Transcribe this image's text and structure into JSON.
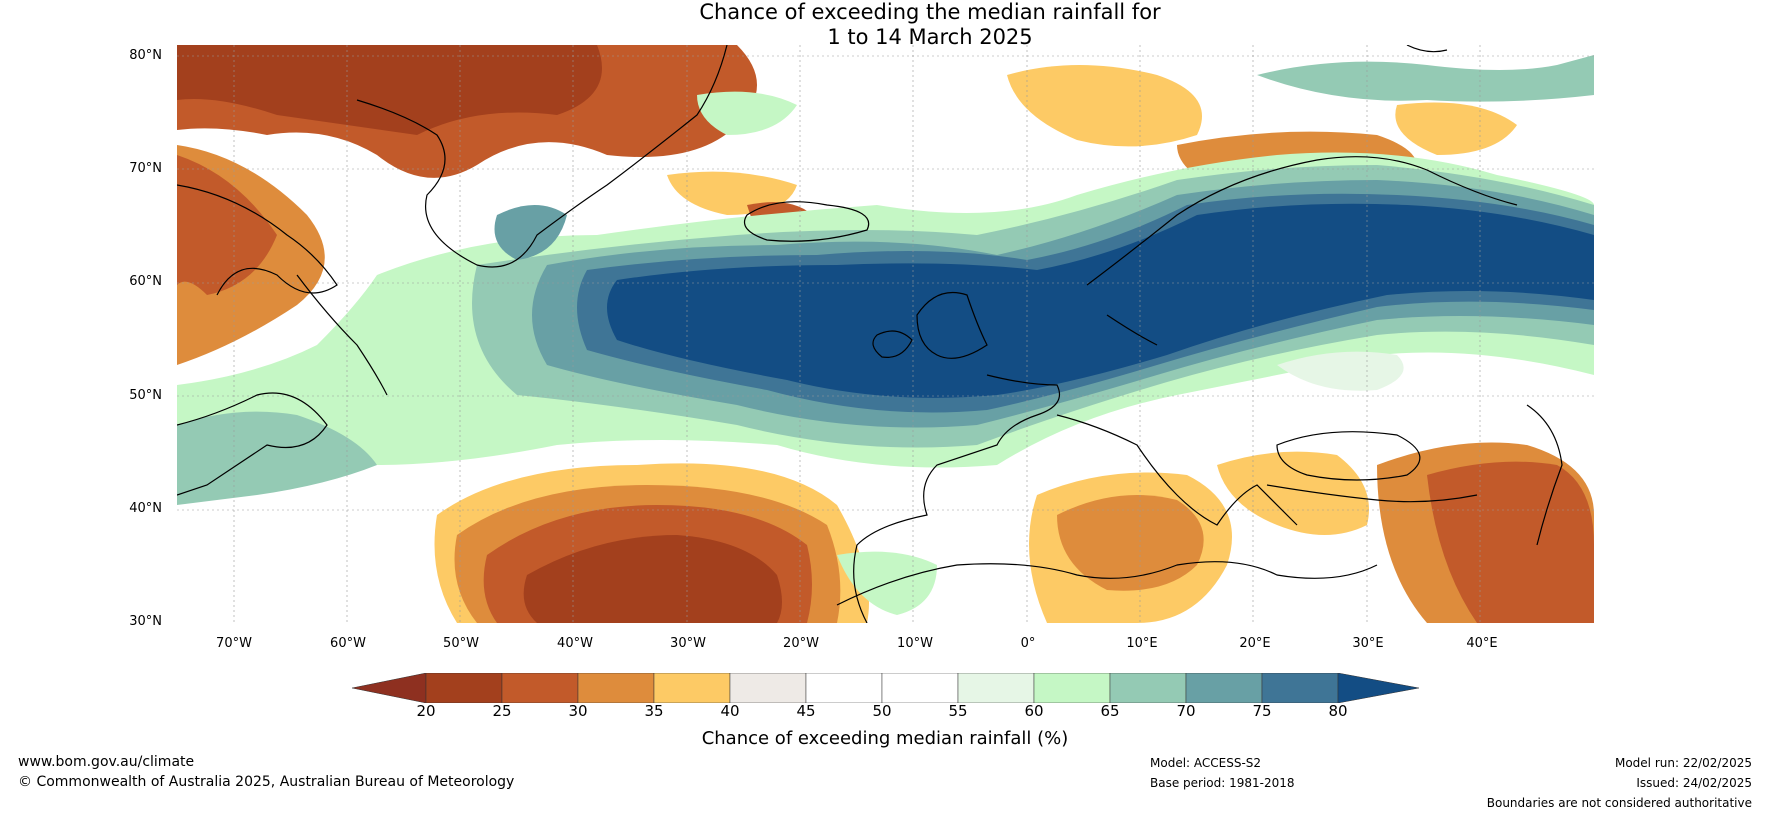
{
  "title": {
    "line1": "Chance of exceeding the median rainfall for",
    "line2": "1 to 14 March 2025"
  },
  "map": {
    "lat_labels": [
      "80°N",
      "70°N",
      "60°N",
      "50°N",
      "40°N",
      "30°N"
    ],
    "lon_labels": [
      "70°W",
      "60°W",
      "50°W",
      "40°W",
      "30°W",
      "20°W",
      "10°W",
      "0°",
      "10°E",
      "20°E",
      "30°E",
      "40°E"
    ],
    "extent": {
      "lon": [
        -75,
        50
      ],
      "lat": [
        30,
        81
      ]
    },
    "colors": {
      "20-25": "#a3401d",
      "25-30": "#c25a2a",
      "30-35": "#de8c3c",
      "35-40": "#fdca65",
      "40-45": "#eeeae6",
      "45-50": "#ffffff",
      "50-55": "#ffffff",
      "55-60": "#e6f6e6",
      "60-65": "#c5f7c5",
      "65-70": "#94cab4",
      "70-75": "#68a0a5",
      "75-80": "#3f7596",
      "gt80": "#134d84",
      "lt20": "#8e3020"
    }
  },
  "colorbar": {
    "ticks": [
      "20",
      "25",
      "30",
      "35",
      "40",
      "45",
      "50",
      "55",
      "60",
      "65",
      "70",
      "75",
      "80"
    ],
    "label": "Chance of exceeding median rainfall (%)"
  },
  "footer": {
    "website": "www.bom.gov.au/climate",
    "copyright": "© Commonwealth of Australia 2025, Australian Bureau of Meteorology",
    "model": "Model: ACCESS-S2",
    "base_period": "Base period: 1981-2018",
    "model_run": "Model run: 22/02/2025",
    "issued": "Issued: 24/02/2025",
    "disclaimer": "Boundaries are not considered authoritative"
  }
}
